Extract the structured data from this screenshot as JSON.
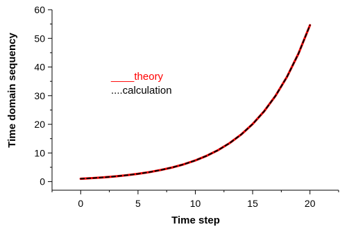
{
  "chart_data": {
    "type": "line",
    "title": "",
    "xlabel": "Time step",
    "ylabel": "Time domain sequency",
    "xlim": [
      -2.5,
      22.5
    ],
    "ylim": [
      -3,
      60
    ],
    "xticks": [
      0,
      5,
      10,
      15,
      20
    ],
    "yticks": [
      0,
      10,
      20,
      30,
      40,
      50,
      60
    ],
    "grid": false,
    "legend_position": "center-left",
    "series": [
      {
        "name": "theory",
        "legend_label": "____theory",
        "color": "#ff0000",
        "style": "solid",
        "x": [
          0,
          1,
          2,
          3,
          4,
          5,
          6,
          7,
          8,
          9,
          10,
          11,
          12,
          13,
          14,
          15,
          16,
          17,
          18,
          19,
          20
        ],
        "y": [
          1.0,
          1.22,
          1.49,
          1.82,
          2.23,
          2.72,
          3.32,
          4.06,
          4.95,
          6.05,
          7.39,
          9.03,
          11.02,
          13.46,
          16.44,
          20.09,
          24.53,
          29.96,
          36.6,
          44.7,
          54.6
        ]
      },
      {
        "name": "calculation",
        "legend_label": "....calculation",
        "color": "#000000",
        "style": "dotted",
        "x": [
          0,
          1,
          2,
          3,
          4,
          5,
          6,
          7,
          8,
          9,
          10,
          11,
          12,
          13,
          14,
          15,
          16,
          17,
          18,
          19,
          20
        ],
        "y": [
          1.0,
          1.22,
          1.49,
          1.82,
          2.23,
          2.72,
          3.32,
          4.06,
          4.95,
          6.05,
          7.39,
          9.03,
          11.02,
          13.46,
          16.44,
          20.09,
          24.53,
          29.96,
          36.6,
          44.7,
          54.6
        ]
      }
    ]
  }
}
